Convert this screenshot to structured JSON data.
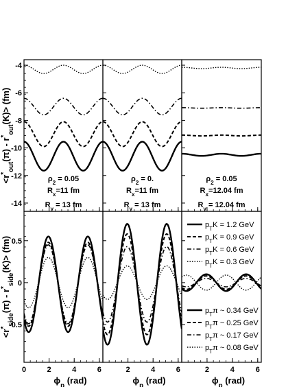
{
  "chart_data": [
    {
      "type": "line",
      "panel": "top-left",
      "ylabel": "<r*out(π) - r*out(K)> (fm)",
      "xlim": [
        0,
        6.283
      ],
      "ylim": [
        -14.6,
        -3.6
      ],
      "yticks": [
        -14,
        -12,
        -10,
        -8,
        -6,
        -4
      ],
      "annotations": [
        "ρ2 = 0.05",
        "Rx=11 fm",
        "Ry = 13 fm"
      ],
      "series": [
        {
          "style": "solid",
          "offset": -10.6,
          "amp": 1.05,
          "freq": 2,
          "phase": 0
        },
        {
          "style": "dash",
          "offset": -9.0,
          "amp": 0.9,
          "freq": 2,
          "phase": 0
        },
        {
          "style": "dashdot",
          "offset": -7.0,
          "amp": 0.6,
          "freq": 2,
          "phase": 0
        },
        {
          "style": "dot",
          "offset": -4.3,
          "amp": 0.3,
          "freq": 2,
          "phase": 0
        }
      ]
    },
    {
      "type": "line",
      "panel": "top-middle",
      "xlim": [
        0,
        6.283
      ],
      "ylim": [
        -14.6,
        -3.6
      ],
      "annotations": [
        "ρ2 = 0.",
        "Rx=11 fm",
        "Ry = 13 fm"
      ],
      "series": [
        {
          "style": "solid",
          "offset": -10.6,
          "amp": 1.05,
          "freq": 2,
          "phase": 0
        },
        {
          "style": "dash",
          "offset": -9.0,
          "amp": 0.9,
          "freq": 2,
          "phase": 0
        },
        {
          "style": "dashdot",
          "offset": -7.0,
          "amp": 0.6,
          "freq": 2,
          "phase": 0
        },
        {
          "style": "dot",
          "offset": -4.3,
          "amp": 0.3,
          "freq": 2,
          "phase": 0
        }
      ]
    },
    {
      "type": "line",
      "panel": "top-right",
      "xlim": [
        0,
        6.283
      ],
      "ylim": [
        -14.6,
        -3.6
      ],
      "annotations": [
        "ρ2 = 0.05",
        "Rx=12.04 fm",
        "Ry = 12.04 fm"
      ],
      "series": [
        {
          "style": "solid",
          "offset": -10.5,
          "amp": 0.08,
          "freq": 2,
          "phase": 0
        },
        {
          "style": "dash",
          "offset": -9.1,
          "amp": 0.03,
          "freq": 2,
          "phase": 0
        },
        {
          "style": "dashdot",
          "offset": -7.1,
          "amp": 0.02,
          "freq": 2,
          "phase": 0
        },
        {
          "style": "dot",
          "offset": -4.2,
          "amp": 0.05,
          "freq": 2,
          "phase": 0
        }
      ]
    },
    {
      "type": "line",
      "panel": "bottom-left",
      "ylabel": "<r*side(π) - r*side(K)> (fm)",
      "xlabel": "ϕp (rad)",
      "xlim": [
        0,
        6.283
      ],
      "ylim": [
        -0.95,
        0.85
      ],
      "xticks": [
        0,
        2,
        4,
        6
      ],
      "yticks": [
        -0.5,
        0,
        0.5
      ],
      "series": [
        {
          "style": "solid",
          "offset": -0.02,
          "amp": 0.57,
          "freq": 2,
          "phase": 2.4
        },
        {
          "style": "dash",
          "offset": -0.02,
          "amp": 0.5,
          "freq": 2,
          "phase": 2.4
        },
        {
          "style": "dashdot",
          "offset": -0.02,
          "amp": 0.47,
          "freq": 2,
          "phase": 2.4
        },
        {
          "style": "dot",
          "offset": 0.0,
          "amp": 0.3,
          "freq": 2,
          "phase": 2.4
        }
      ]
    },
    {
      "type": "line",
      "panel": "bottom-middle",
      "xlabel": "ϕp (rad)",
      "xlim": [
        0,
        6.283
      ],
      "ylim": [
        -0.95,
        0.85
      ],
      "xticks": [
        2,
        4,
        6
      ],
      "series": [
        {
          "style": "solid",
          "offset": -0.02,
          "amp": 0.72,
          "freq": 2,
          "phase": 2.4
        },
        {
          "style": "dash",
          "offset": -0.02,
          "amp": 0.6,
          "freq": 2,
          "phase": 2.4
        },
        {
          "style": "dashdot",
          "offset": -0.02,
          "amp": 0.45,
          "freq": 2,
          "phase": 2.4
        },
        {
          "style": "dot",
          "offset": 0.0,
          "amp": 0.2,
          "freq": 2,
          "phase": 2.4
        }
      ]
    },
    {
      "type": "line",
      "panel": "bottom-right",
      "xlabel": "ϕp (rad)",
      "xlim": [
        0,
        6.283
      ],
      "ylim": [
        -0.95,
        0.85
      ],
      "xticks": [
        2,
        4,
        6
      ],
      "legend_top": [
        {
          "style": "solid",
          "label": "pTK = 1.2 GeV"
        },
        {
          "style": "dash",
          "label": "pTK = 0.9 GeV"
        },
        {
          "style": "dashdot",
          "label": "pTK = 0.6 GeV"
        },
        {
          "style": "dot",
          "label": "pTK = 0.3 GeV"
        }
      ],
      "legend_bottom": [
        {
          "style": "solid",
          "label": "pTπ ~ 0.34 GeV"
        },
        {
          "style": "dash",
          "label": "pTπ ~ 0.25 GeV"
        },
        {
          "style": "dashdot",
          "label": "pTπ ~ 0.17 GeV"
        },
        {
          "style": "dot",
          "label": "pTπ ~ 0.08 GeV"
        }
      ],
      "series": [
        {
          "style": "solid",
          "offset": 0.0,
          "amp": 0.1,
          "freq": 2,
          "phase": 2.4
        },
        {
          "style": "dash",
          "offset": 0.0,
          "amp": 0.08,
          "freq": 2,
          "phase": 2.4
        },
        {
          "style": "dashdot",
          "offset": 0.0,
          "amp": 0.05,
          "freq": 2,
          "phase": 2.4
        },
        {
          "style": "dot",
          "offset": 0.0,
          "amp": 0.09,
          "freq": 2,
          "phase": -0.74
        }
      ]
    }
  ]
}
